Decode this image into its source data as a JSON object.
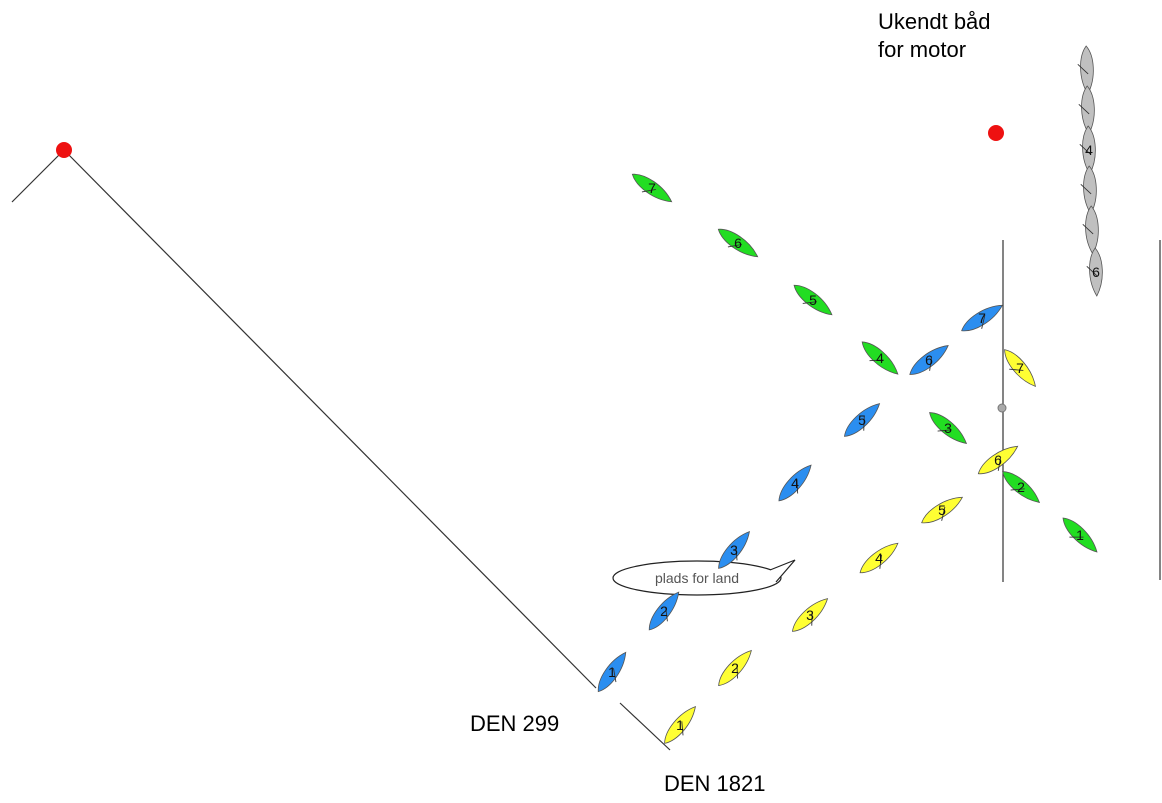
{
  "labels": {
    "den299": "DEN 299",
    "den1821": "DEN 1821",
    "unknown_line1": "Ukendt båd",
    "unknown_line2": "for motor"
  },
  "callout": {
    "text": "plads for land"
  },
  "colors": {
    "green": "#22dd22",
    "blue": "#2b8ef0",
    "yellow": "#ffff33",
    "grey": "#c0c0c0",
    "mark": "#ee1111"
  },
  "boats": {
    "green": [
      "7",
      "6",
      "5",
      "4",
      "3",
      "2",
      "1"
    ],
    "blue": [
      "1",
      "2",
      "3",
      "4",
      "5",
      "6",
      "7"
    ],
    "yellow": [
      "1",
      "2",
      "3",
      "4",
      "5",
      "6",
      "7"
    ],
    "grey": [
      "4",
      "6"
    ]
  }
}
